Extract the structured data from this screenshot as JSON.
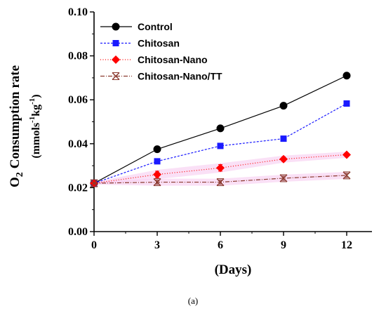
{
  "chart_data": {
    "type": "line",
    "title": "",
    "xlabel": "(Days)",
    "ylabel_main": "Consumption rate",
    "ylabel_prefix": "O",
    "ylabel_sub": "2",
    "ylabel_unit_parts": [
      "(mmols",
      "-1",
      "kg",
      "-1",
      ")"
    ],
    "caption": "(a)",
    "x": [
      0,
      3,
      6,
      9,
      12
    ],
    "xlim": [
      0,
      13.2
    ],
    "ylim": [
      0,
      0.1
    ],
    "xticks": [
      "0",
      "3",
      "6",
      "9",
      "12"
    ],
    "yticks": [
      "0.00",
      "0.02",
      "0.04",
      "0.06",
      "0.08",
      "0.10"
    ],
    "grid": false,
    "legend_position": "top-left",
    "series": [
      {
        "name": "Control",
        "values": [
          0.022,
          0.0375,
          0.047,
          0.0573,
          0.071
        ],
        "errors": [
          0,
          0,
          0,
          0,
          0
        ],
        "color": "#000000",
        "marker": "circle",
        "dash": "",
        "band": false
      },
      {
        "name": "Chitosan",
        "values": [
          0.022,
          0.032,
          0.039,
          0.0423,
          0.0583
        ],
        "errors": [
          0,
          0,
          0,
          0,
          0
        ],
        "color": "#1a1aff",
        "marker": "square",
        "dash": "3,2",
        "band": false
      },
      {
        "name": "Chitosan-Nano",
        "values": [
          0.022,
          0.026,
          0.029,
          0.033,
          0.035
        ],
        "errors": [
          0,
          0.0015,
          0.0015,
          0.001,
          0.0008
        ],
        "color": "#ff0000",
        "marker": "diamond",
        "dash": "1,2.5",
        "band": true
      },
      {
        "name": "Chitosan-Nano/TT",
        "values": [
          0.022,
          0.0225,
          0.0225,
          0.0243,
          0.0256
        ],
        "errors": [
          0,
          0.001,
          0.001,
          0.001,
          0.001
        ],
        "color": "#8b3a2f",
        "marker": "x",
        "dash": "6,2,1,2",
        "band": true
      }
    ]
  }
}
